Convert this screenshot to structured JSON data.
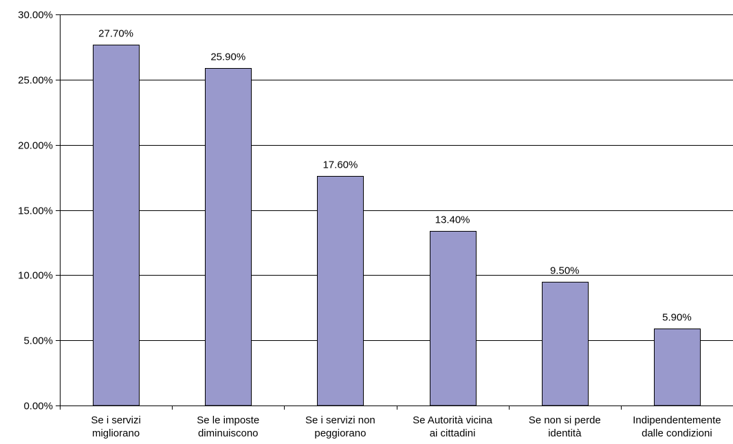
{
  "chart_data": {
    "type": "bar",
    "title": "",
    "xlabel": "",
    "ylabel": "",
    "categories": [
      [
        "Se i servizi",
        "migliorano"
      ],
      [
        "Se le imposte",
        "diminuiscono"
      ],
      [
        "Se i servizi non",
        "peggiorano"
      ],
      [
        "Se Autorità vicina",
        "ai cittadini"
      ],
      [
        "Se non si perde",
        "identità"
      ],
      [
        "Indipendentemente",
        "dalle condizioni"
      ]
    ],
    "values": [
      27.7,
      25.9,
      17.6,
      13.4,
      9.5,
      5.9
    ],
    "data_labels": [
      "27.70%",
      "25.90%",
      "17.60%",
      "13.40%",
      "9.50%",
      "5.90%"
    ],
    "ylim": [
      0,
      30
    ],
    "yticks": [
      0,
      5,
      10,
      15,
      20,
      25,
      30
    ],
    "ytick_labels": [
      "0.00%",
      "5.00%",
      "10.00%",
      "15.00%",
      "20.00%",
      "25.00%",
      "30.00%"
    ],
    "grid": true,
    "legend": "none",
    "colors": {
      "bar_fill": "#9999cc",
      "bar_stroke": "#000000",
      "grid": "#000000",
      "axis": "#000000"
    }
  }
}
